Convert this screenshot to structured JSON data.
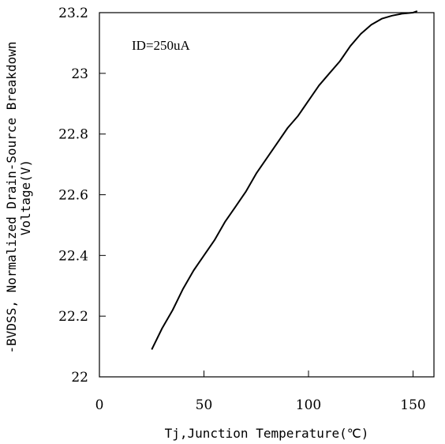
{
  "chart_data": {
    "type": "line",
    "xlabel": "Tj,Junction Temperature(℃)",
    "ylabel_line1": "-BVDSS, Normalized Drain-Source Breakdown",
    "ylabel_line2": "Voltage(V)",
    "annotation": "ID=250uA",
    "xlim": [
      0,
      160
    ],
    "ylim": [
      22.0,
      23.2
    ],
    "x_ticks": [
      0,
      50,
      100,
      150
    ],
    "x_tick_labels": [
      "0",
      "50",
      "100",
      "150"
    ],
    "y_ticks": [
      22.0,
      22.2,
      22.4,
      22.6,
      22.8,
      23.0,
      23.2
    ],
    "y_tick_labels": [
      "22",
      "22.2",
      "22.4",
      "22.6",
      "22.8",
      "23",
      "23.2"
    ],
    "grid": false,
    "series": [
      {
        "x": [
          25,
          30,
          35,
          40,
          45,
          50,
          55,
          60,
          65,
          70,
          75,
          80,
          85,
          90,
          95,
          100,
          105,
          110,
          115,
          120,
          125,
          130,
          135,
          140,
          145,
          150,
          152
        ],
        "y": [
          22.09,
          22.16,
          22.22,
          22.29,
          22.35,
          22.4,
          22.45,
          22.51,
          22.56,
          22.61,
          22.67,
          22.72,
          22.77,
          22.82,
          22.86,
          22.91,
          22.96,
          23.0,
          23.04,
          23.09,
          23.13,
          23.16,
          23.18,
          23.19,
          23.197,
          23.2,
          23.205
        ]
      }
    ]
  },
  "style": {
    "line_color": "#000000",
    "axis_color": "#000000"
  }
}
